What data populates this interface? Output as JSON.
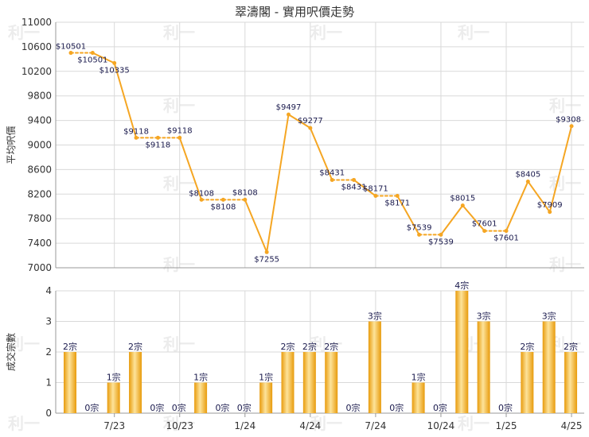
{
  "title": "翠濤閣 - 實用呎價走勢",
  "watermark": "利一",
  "colors": {
    "line": "#f5a623",
    "marker": "#f5a623",
    "bar_light": "#fde39a",
    "bar_dark": "#e89b0c",
    "grid": "#d9d9d9",
    "axis_text": "#333333",
    "label_text": "#1a1a4d"
  },
  "chart_data": [
    {
      "type": "line",
      "title": "翠濤閣 - 實用呎價走勢",
      "ylabel": "平均呎價",
      "ylim": [
        7000,
        11000
      ],
      "yticks": [
        7000,
        7400,
        7800,
        8200,
        8600,
        9000,
        9400,
        9800,
        10200,
        10600,
        11000
      ],
      "grid": true,
      "x_index": [
        0,
        1,
        2,
        3,
        4,
        5,
        6,
        7,
        8,
        9,
        10,
        11,
        12,
        13,
        14,
        15,
        16,
        17,
        18,
        19,
        20,
        21,
        22,
        23
      ],
      "values": [
        10501,
        10501,
        10335,
        9118,
        9118,
        9118,
        8108,
        8108,
        8108,
        7255,
        9497,
        9277,
        8431,
        8431,
        8171,
        8171,
        7539,
        7539,
        8015,
        7601,
        7601,
        8405,
        7909,
        9308
      ],
      "labels": [
        "$10501",
        "$10501",
        "$10335",
        "$9118",
        "$9118",
        "$9118",
        "$8108",
        "$8108",
        "$8108",
        "$7255",
        "$9497",
        "$9277",
        "$8431",
        "$8431",
        "$8171",
        "$8171",
        "$7539",
        "$7539",
        "$8015",
        "$7601",
        "$7601",
        "$8405",
        "$7909",
        "$9308"
      ],
      "interpolated": [
        false,
        true,
        false,
        false,
        true,
        false,
        false,
        true,
        false,
        false,
        false,
        false,
        false,
        true,
        false,
        true,
        false,
        true,
        false,
        false,
        true,
        false,
        false,
        false
      ]
    },
    {
      "type": "bar",
      "ylabel": "成交宗數",
      "ylim": [
        0,
        4
      ],
      "yticks": [
        0,
        1,
        2,
        3,
        4
      ],
      "grid": true,
      "values": [
        2,
        0,
        1,
        2,
        0,
        0,
        1,
        0,
        0,
        1,
        2,
        2,
        2,
        0,
        3,
        0,
        1,
        0,
        4,
        3,
        0,
        2,
        3,
        2
      ],
      "labels": [
        "2宗",
        "0宗",
        "1宗",
        "2宗",
        "0宗",
        "0宗",
        "1宗",
        "0宗",
        "0宗",
        "1宗",
        "2宗",
        "2宗",
        "2宗",
        "0宗",
        "3宗",
        "0宗",
        "1宗",
        "0宗",
        "4宗",
        "3宗",
        "0宗",
        "2宗",
        "3宗",
        "2宗"
      ],
      "xticks": [
        {
          "index": 2,
          "label": "7/23"
        },
        {
          "index": 5,
          "label": "10/23"
        },
        {
          "index": 8,
          "label": "1/24"
        },
        {
          "index": 11,
          "label": "4/24"
        },
        {
          "index": 14,
          "label": "7/24"
        },
        {
          "index": 17,
          "label": "10/24"
        },
        {
          "index": 20,
          "label": "1/25"
        },
        {
          "index": 23,
          "label": "4/25"
        }
      ]
    }
  ]
}
